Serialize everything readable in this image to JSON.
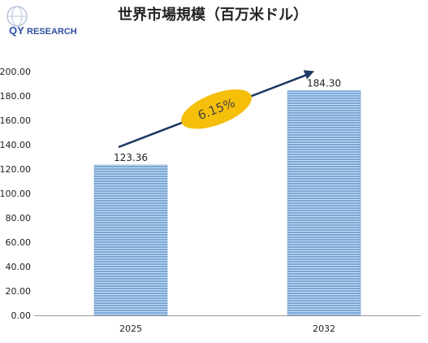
{
  "logo": {
    "brand": "QYRESEARCH",
    "mark": "QY",
    "rest": "RESEARCH",
    "color_blue": "#2f4fa0",
    "color_red": "#d8282e"
  },
  "colors": {
    "bar": "#7aa7d6",
    "bar_stripe": "#c9def2",
    "arrow": "#1f3864",
    "ellipse": "#f5bf0a",
    "axis": "#999999"
  },
  "chart_data": {
    "type": "bar",
    "title": "世界市場規模（百万米ドル）",
    "categories": [
      "2025",
      "2032"
    ],
    "values": [
      123.36,
      184.3
    ],
    "value_labels": [
      "123.36",
      "184.30"
    ],
    "ylim": [
      0,
      200
    ],
    "yticks": [
      "0.00",
      "20.00",
      "40.00",
      "60.00",
      "80.00",
      "100.00",
      "120.00",
      "140.00",
      "160.00",
      "180.00",
      "200.00"
    ],
    "xlabel": "",
    "ylabel": "",
    "grid": false,
    "annotation": "6.15%"
  }
}
